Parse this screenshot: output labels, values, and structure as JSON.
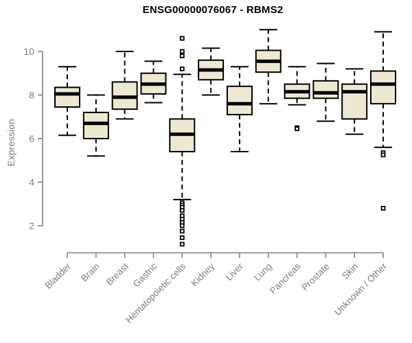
{
  "page": {
    "background": "#ffffff"
  },
  "chart_data": {
    "type": "boxplot",
    "title": "ENSG00000076067 - RBMS2",
    "xlabel": "",
    "ylabel": "Expression",
    "yticks": [
      2,
      4,
      6,
      8,
      10
    ],
    "ylim": [
      2,
      10
    ],
    "grid": false,
    "legend": "none",
    "colors": {
      "box_fill": "#ede8d0",
      "box_border": "#000000",
      "median": "#000000",
      "whisker": "#000000",
      "axis_line": "#808080",
      "tick_label": "#7e7e7e",
      "title": "#000000"
    },
    "categories": [
      "Bladder",
      "Brain",
      "Breast",
      "Gastric",
      "Hematopoietic cells",
      "Kidney",
      "Liver",
      "Lung",
      "Pancreas",
      "Prostate",
      "Skin",
      "Unknown / Other"
    ],
    "series": [
      {
        "category": "Bladder",
        "whisker_low": 6.15,
        "q1": 7.45,
        "median": 8.05,
        "q3": 8.35,
        "whisker_high": 9.3,
        "outliers": []
      },
      {
        "category": "Brain",
        "whisker_low": 5.2,
        "q1": 6.0,
        "median": 6.7,
        "q3": 7.2,
        "whisker_high": 8.0,
        "outliers": []
      },
      {
        "category": "Breast",
        "whisker_low": 6.9,
        "q1": 7.35,
        "median": 7.9,
        "q3": 8.6,
        "whisker_high": 10.0,
        "outliers": []
      },
      {
        "category": "Gastric",
        "whisker_low": 7.65,
        "q1": 8.05,
        "median": 8.5,
        "q3": 9.0,
        "whisker_high": 9.55,
        "outliers": []
      },
      {
        "category": "Hematopoietic cells",
        "whisker_low": 3.2,
        "q1": 5.4,
        "median": 6.2,
        "q3": 6.9,
        "whisker_high": 8.95,
        "outliers": [
          10.6,
          10.0,
          9.8,
          9.2,
          3.05,
          2.95,
          2.85,
          2.7,
          2.45,
          2.3,
          2.15,
          2.0,
          1.75,
          1.45,
          1.15
        ]
      },
      {
        "category": "Kidney",
        "whisker_low": 8.0,
        "q1": 8.7,
        "median": 9.15,
        "q3": 9.6,
        "whisker_high": 10.15,
        "outliers": []
      },
      {
        "category": "Liver",
        "whisker_low": 5.4,
        "q1": 7.1,
        "median": 7.6,
        "q3": 8.4,
        "whisker_high": 9.3,
        "outliers": []
      },
      {
        "category": "Lung",
        "whisker_low": 7.6,
        "q1": 9.05,
        "median": 9.55,
        "q3": 10.05,
        "whisker_high": 11.0,
        "outliers": []
      },
      {
        "category": "Pancreas",
        "whisker_low": 7.55,
        "q1": 7.85,
        "median": 8.15,
        "q3": 8.5,
        "whisker_high": 9.3,
        "outliers": [
          6.5,
          6.45
        ]
      },
      {
        "category": "Prostate",
        "whisker_low": 6.8,
        "q1": 7.85,
        "median": 8.1,
        "q3": 8.65,
        "whisker_high": 9.45,
        "outliers": []
      },
      {
        "category": "Skin",
        "whisker_low": 6.2,
        "q1": 6.9,
        "median": 8.15,
        "q3": 8.5,
        "whisker_high": 9.2,
        "outliers": []
      },
      {
        "category": "Unknown / Other",
        "whisker_low": 5.6,
        "q1": 7.6,
        "median": 8.5,
        "q3": 9.1,
        "whisker_high": 10.9,
        "outliers": [
          5.35,
          5.25,
          2.8
        ]
      }
    ]
  }
}
